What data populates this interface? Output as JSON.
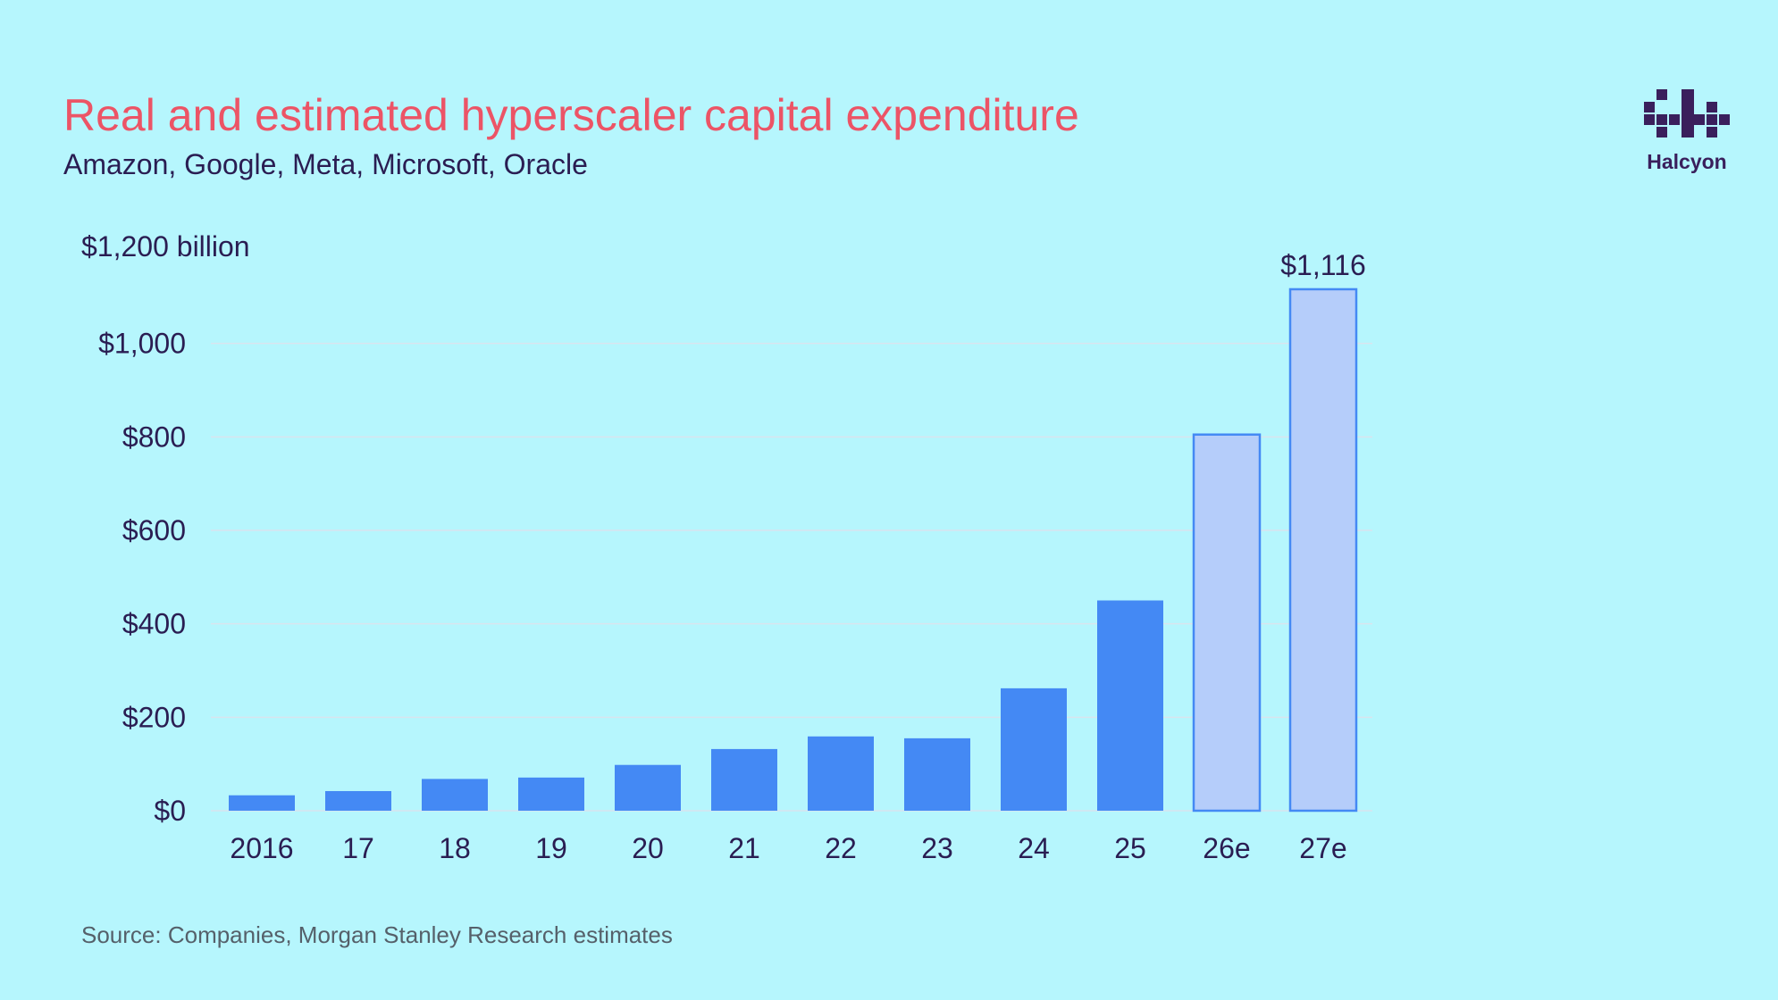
{
  "header": {
    "title": "Real and estimated hyperscaler capital expenditure",
    "subtitle": "Amazon, Google, Meta, Microsoft, Oracle"
  },
  "brand": {
    "name": "Halcyon",
    "logo_icon": "halcyon-logo-icon",
    "color": "#3a1f5c"
  },
  "footer": {
    "source": "Source: Companies, Morgan Stanley Research estimates"
  },
  "colors": {
    "background": "#b6f6fd",
    "actual_bar": "#4489f4",
    "estimate_bar_fill": "#b5cdfa",
    "estimate_bar_stroke": "#4489f4",
    "title": "#ec5466",
    "text": "#2a1d52",
    "grid": "#d9e4ee"
  },
  "chart_data": {
    "type": "bar",
    "categories": [
      "2016",
      "17",
      "18",
      "19",
      "20",
      "21",
      "22",
      "23",
      "24",
      "25",
      "26e",
      "27e"
    ],
    "values": [
      33,
      42,
      68,
      71,
      98,
      132,
      159,
      155,
      262,
      450,
      805,
      1116
    ],
    "estimated": [
      false,
      false,
      false,
      false,
      false,
      false,
      false,
      false,
      false,
      false,
      true,
      true
    ],
    "ylim": [
      0,
      1200
    ],
    "yticks": [
      0,
      200,
      400,
      600,
      800,
      1000
    ],
    "ytick_labels": [
      "$0",
      "$200",
      "$400",
      "$600",
      "$800",
      "$1,000"
    ],
    "ylabel": "$1,200 billion",
    "data_labels": [
      {
        "index": 11,
        "text": "$1,116"
      }
    ],
    "grid": true,
    "legend": "none"
  }
}
